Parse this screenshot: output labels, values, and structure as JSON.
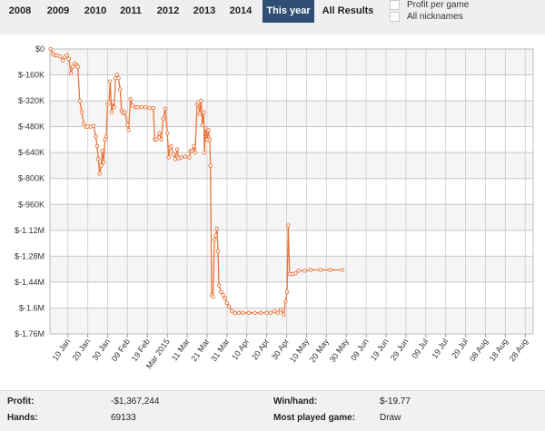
{
  "tabs": [
    {
      "label": "2008",
      "active": false
    },
    {
      "label": "2009",
      "active": false
    },
    {
      "label": "2010",
      "active": false
    },
    {
      "label": "2011",
      "active": false
    },
    {
      "label": "2012",
      "active": false
    },
    {
      "label": "2013",
      "active": false
    },
    {
      "label": "2014",
      "active": false
    },
    {
      "label": "This year",
      "active": true
    },
    {
      "label": "All Results",
      "active": false
    }
  ],
  "options": {
    "profit_per_game": "Profit per game",
    "all_nicknames": "All nicknames"
  },
  "colors": {
    "line": "#e8743b",
    "active_tab": "#2e4f73"
  },
  "chart_data": {
    "type": "line",
    "title": "",
    "xlabel": "",
    "ylabel": "",
    "ylim": [
      -1760000,
      0
    ],
    "y_ticks": [
      {
        "value": 0,
        "label": "$0"
      },
      {
        "value": -160000,
        "label": "$-160K"
      },
      {
        "value": -320000,
        "label": "$-320K"
      },
      {
        "value": -480000,
        "label": "$-480K"
      },
      {
        "value": -640000,
        "label": "$-640K"
      },
      {
        "value": -800000,
        "label": "$-800K"
      },
      {
        "value": -960000,
        "label": "$-960K"
      },
      {
        "value": -1120000,
        "label": "$-1.12M"
      },
      {
        "value": -1280000,
        "label": "$-1.28M"
      },
      {
        "value": -1440000,
        "label": "$-1.44M"
      },
      {
        "value": -1600000,
        "label": "$-1.6M"
      },
      {
        "value": -1760000,
        "label": "$-1.76M"
      }
    ],
    "x_day_range": [
      0,
      243
    ],
    "x_ticks": [
      {
        "day": 9,
        "label": "10 Jan"
      },
      {
        "day": 19,
        "label": "20 Jan"
      },
      {
        "day": 29,
        "label": "30 Jan"
      },
      {
        "day": 39,
        "label": "09 Feb"
      },
      {
        "day": 49,
        "label": "19 Feb"
      },
      {
        "day": 59,
        "label": "Mar 2015"
      },
      {
        "day": 69,
        "label": "11 Mar"
      },
      {
        "day": 79,
        "label": "21 Mar"
      },
      {
        "day": 89,
        "label": "31 Mar"
      },
      {
        "day": 99,
        "label": "10 Apr"
      },
      {
        "day": 109,
        "label": "20 Apr"
      },
      {
        "day": 119,
        "label": "30 Apr"
      },
      {
        "day": 129,
        "label": "10 May"
      },
      {
        "day": 139,
        "label": "20 May"
      },
      {
        "day": 149,
        "label": "30 May"
      },
      {
        "day": 159,
        "label": "09 Jun"
      },
      {
        "day": 169,
        "label": "19 Jun"
      },
      {
        "day": 179,
        "label": "29 Jun"
      },
      {
        "day": 189,
        "label": "09 Jul"
      },
      {
        "day": 199,
        "label": "19 Jul"
      },
      {
        "day": 209,
        "label": "29 Jul"
      },
      {
        "day": 219,
        "label": "08 Aug"
      },
      {
        "day": 229,
        "label": "18 Aug"
      },
      {
        "day": 239,
        "label": "28 Aug"
      }
    ],
    "series": [
      {
        "name": "Profit",
        "points": [
          [
            0.3,
            0
          ],
          [
            1.5,
            -30000
          ],
          [
            2.5,
            -40000
          ],
          [
            3.5,
            -40000
          ],
          [
            5,
            -45000
          ],
          [
            6.5,
            -70000
          ],
          [
            7.5,
            -50000
          ],
          [
            8.5,
            -40000
          ],
          [
            9.5,
            -60000
          ],
          [
            10.5,
            -150000
          ],
          [
            11.5,
            -110000
          ],
          [
            12.5,
            -90000
          ],
          [
            13.5,
            -100000
          ],
          [
            14,
            -110000
          ],
          [
            15,
            -320000
          ],
          [
            16,
            -390000
          ],
          [
            17,
            -460000
          ],
          [
            18,
            -480000
          ],
          [
            19,
            -480000
          ],
          [
            20.5,
            -480000
          ],
          [
            22,
            -475000
          ],
          [
            23,
            -540000
          ],
          [
            23.7,
            -600000
          ],
          [
            24.3,
            -680000
          ],
          [
            25,
            -770000
          ],
          [
            25.7,
            -720000
          ],
          [
            26.3,
            -630000
          ],
          [
            27,
            -700000
          ],
          [
            27.7,
            -560000
          ],
          [
            28.3,
            -540000
          ],
          [
            29,
            -340000
          ],
          [
            29.7,
            -330000
          ],
          [
            30.3,
            -200000
          ],
          [
            31,
            -390000
          ],
          [
            31.7,
            -330000
          ],
          [
            32.3,
            -360000
          ],
          [
            33,
            -180000
          ],
          [
            33.7,
            -160000
          ],
          [
            34.5,
            -180000
          ],
          [
            35.3,
            -250000
          ],
          [
            36,
            -380000
          ],
          [
            36.8,
            -395000
          ],
          [
            37.6,
            -390000
          ],
          [
            39,
            -470000
          ],
          [
            39.5,
            -500000
          ],
          [
            40.5,
            -310000
          ],
          [
            41.5,
            -350000
          ],
          [
            43,
            -360000
          ],
          [
            44,
            -360000
          ],
          [
            46,
            -360000
          ],
          [
            48,
            -360000
          ],
          [
            50,
            -365000
          ],
          [
            52,
            -365000
          ],
          [
            52.7,
            -560000
          ],
          [
            53.7,
            -560000
          ],
          [
            55,
            -520000
          ],
          [
            56,
            -560000
          ],
          [
            57,
            -430000
          ],
          [
            58,
            -370000
          ],
          [
            59,
            -520000
          ],
          [
            59.7,
            -670000
          ],
          [
            60.3,
            -610000
          ],
          [
            61,
            -600000
          ],
          [
            62,
            -650000
          ],
          [
            63,
            -680000
          ],
          [
            64,
            -620000
          ],
          [
            64.7,
            -675000
          ],
          [
            66,
            -670000
          ],
          [
            68,
            -665000
          ],
          [
            70,
            -670000
          ],
          [
            70.7,
            -630000
          ],
          [
            71.3,
            -630000
          ],
          [
            72.3,
            -600000
          ],
          [
            73,
            -640000
          ],
          [
            74,
            -340000
          ],
          [
            74.7,
            -330000
          ],
          [
            75.3,
            -400000
          ],
          [
            76,
            -320000
          ],
          [
            76.7,
            -470000
          ],
          [
            77.3,
            -390000
          ],
          [
            77.7,
            -640000
          ],
          [
            78.3,
            -490000
          ],
          [
            79,
            -560000
          ],
          [
            79.7,
            -500000
          ],
          [
            80.3,
            -560000
          ],
          [
            80.7,
            -720000
          ],
          [
            81.3,
            -1520000
          ],
          [
            82,
            -1530000
          ],
          [
            82.7,
            -1180000
          ],
          [
            83.3,
            -1150000
          ],
          [
            84,
            -1110000
          ],
          [
            84.5,
            -1250000
          ],
          [
            85,
            -1460000
          ],
          [
            86,
            -1500000
          ],
          [
            87,
            -1520000
          ],
          [
            88,
            -1540000
          ],
          [
            89,
            -1570000
          ],
          [
            90,
            -1590000
          ],
          [
            91.5,
            -1620000
          ],
          [
            93,
            -1630000
          ],
          [
            95,
            -1630000
          ],
          [
            97,
            -1630000
          ],
          [
            100,
            -1630000
          ],
          [
            103,
            -1630000
          ],
          [
            106,
            -1630000
          ],
          [
            109,
            -1630000
          ],
          [
            111,
            -1630000
          ],
          [
            113,
            -1620000
          ],
          [
            114.5,
            -1630000
          ],
          [
            116,
            -1610000
          ],
          [
            117.5,
            -1640000
          ],
          [
            118.5,
            -1560000
          ],
          [
            119.2,
            -1500000
          ],
          [
            119.8,
            -1090000
          ],
          [
            120.5,
            -1390000
          ],
          [
            122,
            -1390000
          ],
          [
            123.5,
            -1385000
          ],
          [
            125,
            -1370000
          ],
          [
            128,
            -1370000
          ],
          [
            131,
            -1365000
          ],
          [
            136,
            -1365000
          ],
          [
            141,
            -1365000
          ],
          [
            147,
            -1365000
          ]
        ]
      }
    ]
  },
  "stats": {
    "profit_label": "Profit:",
    "profit_value": "-$1,367,244",
    "winhand_label": "Win/hand:",
    "winhand_value": "$-19.77",
    "hands_label": "Hands:",
    "hands_value": "69133",
    "most_played_label": "Most played game:",
    "most_played_value": "Draw"
  }
}
